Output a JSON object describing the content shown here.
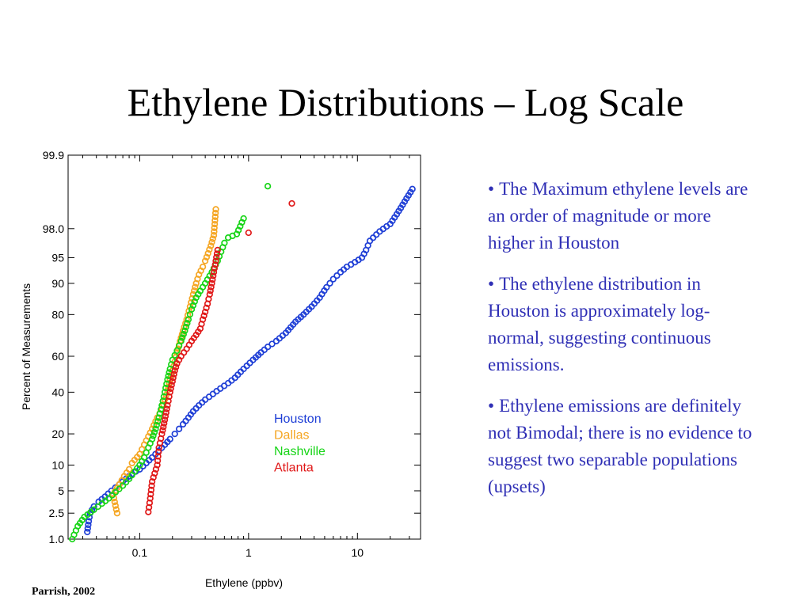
{
  "slide": {
    "title": "Ethylene Distributions – Log Scale",
    "bullets": [
      "The Maximum ethylene levels are an order of magnitude or more higher in Houston",
      "The ethylene distribution in Houston is approximately log-normal, suggesting continuous emissions.",
      "Ethylene emissions are definitely not Bimodal; there is no evidence to suggest two separable populations (upsets)"
    ],
    "bullet_glyph": "•",
    "citation": "Parrish, 2002"
  },
  "chart_data": {
    "type": "scatter",
    "xlabel": "Ethylene (ppbv)",
    "ylabel": "Percent of Measurements",
    "x_scale": "log",
    "y_scale": "probability",
    "xlim": [
      0.022,
      38
    ],
    "ylim": [
      1.0,
      99.9
    ],
    "x_ticks": [
      {
        "value": 0.1,
        "label": "0.1"
      },
      {
        "value": 1,
        "label": "1"
      },
      {
        "value": 10,
        "label": "10"
      }
    ],
    "y_ticks": [
      {
        "value": 1.0,
        "label": "1.0"
      },
      {
        "value": 2.5,
        "label": "2.5"
      },
      {
        "value": 5,
        "label": "5"
      },
      {
        "value": 10,
        "label": "10"
      },
      {
        "value": 20,
        "label": "20"
      },
      {
        "value": 40,
        "label": "40"
      },
      {
        "value": 60,
        "label": "60"
      },
      {
        "value": 80,
        "label": "80"
      },
      {
        "value": 90,
        "label": "90"
      },
      {
        "value": 95,
        "label": "95"
      },
      {
        "value": 98.0,
        "label": "98.0"
      },
      {
        "value": 99.9,
        "label": "99.9"
      }
    ],
    "marker": "open-circle",
    "legend_position": "inside-lower-right",
    "series": [
      {
        "name": "Houston",
        "color": "#1f3fd6",
        "points": [
          [
            0.033,
            1.3
          ],
          [
            0.034,
            1.9
          ],
          [
            0.035,
            2.5
          ],
          [
            0.038,
            3.1
          ],
          [
            0.042,
            3.6
          ],
          [
            0.048,
            4.2
          ],
          [
            0.055,
            5
          ],
          [
            0.065,
            6
          ],
          [
            0.075,
            7
          ],
          [
            0.085,
            8
          ],
          [
            0.1,
            9
          ],
          [
            0.115,
            10.5
          ],
          [
            0.13,
            12
          ],
          [
            0.15,
            14
          ],
          [
            0.17,
            16
          ],
          [
            0.19,
            18
          ],
          [
            0.21,
            20
          ],
          [
            0.23,
            22
          ],
          [
            0.25,
            24
          ],
          [
            0.28,
            27
          ],
          [
            0.31,
            30
          ],
          [
            0.35,
            33
          ],
          [
            0.4,
            36
          ],
          [
            0.47,
            39
          ],
          [
            0.55,
            42
          ],
          [
            0.65,
            45
          ],
          [
            0.75,
            48
          ],
          [
            0.9,
            53
          ],
          [
            1.1,
            58
          ],
          [
            1.3,
            62
          ],
          [
            1.5,
            65
          ],
          [
            1.8,
            68
          ],
          [
            2.2,
            72
          ],
          [
            2.7,
            77
          ],
          [
            3.2,
            80
          ],
          [
            3.8,
            83
          ],
          [
            4.5,
            86
          ],
          [
            5.2,
            89
          ],
          [
            6.0,
            91
          ],
          [
            7.0,
            92.5
          ],
          [
            8.0,
            93.5
          ],
          [
            9.5,
            94.3
          ],
          [
            11,
            95
          ],
          [
            12,
            96
          ],
          [
            13,
            97
          ],
          [
            16,
            97.8
          ],
          [
            20,
            98.3
          ],
          [
            23,
            98.8
          ],
          [
            32,
            99.55
          ]
        ]
      },
      {
        "name": "Dallas",
        "color": "#f5a623",
        "points": [
          [
            0.062,
            2.5
          ],
          [
            0.057,
            4.5
          ],
          [
            0.065,
            6
          ],
          [
            0.072,
            7.5
          ],
          [
            0.08,
            9
          ],
          [
            0.085,
            10.5
          ],
          [
            0.1,
            13
          ],
          [
            0.11,
            16
          ],
          [
            0.12,
            19
          ],
          [
            0.13,
            22
          ],
          [
            0.145,
            27
          ],
          [
            0.16,
            31
          ],
          [
            0.17,
            36
          ],
          [
            0.18,
            41
          ],
          [
            0.19,
            47
          ],
          [
            0.2,
            52
          ],
          [
            0.21,
            57
          ],
          [
            0.22,
            62
          ],
          [
            0.235,
            68
          ],
          [
            0.25,
            73
          ],
          [
            0.27,
            78
          ],
          [
            0.29,
            83
          ],
          [
            0.31,
            87
          ],
          [
            0.33,
            90
          ],
          [
            0.35,
            92
          ],
          [
            0.38,
            93.5
          ],
          [
            0.4,
            94.5
          ],
          [
            0.45,
            96.5
          ],
          [
            0.48,
            97.5
          ],
          [
            0.5,
            99
          ]
        ]
      },
      {
        "name": "Nashville",
        "color": "#17d417",
        "points": [
          [
            0.024,
            1
          ],
          [
            0.027,
            1.6
          ],
          [
            0.031,
            2.2
          ],
          [
            0.038,
            2.8
          ],
          [
            0.045,
            3.4
          ],
          [
            0.052,
            4
          ],
          [
            0.06,
            4.8
          ],
          [
            0.07,
            5.8
          ],
          [
            0.08,
            7
          ],
          [
            0.09,
            8.5
          ],
          [
            0.1,
            10
          ],
          [
            0.11,
            12
          ],
          [
            0.12,
            15
          ],
          [
            0.13,
            18
          ],
          [
            0.14,
            22
          ],
          [
            0.15,
            27
          ],
          [
            0.16,
            33
          ],
          [
            0.17,
            40
          ],
          [
            0.18,
            47
          ],
          [
            0.19,
            53
          ],
          [
            0.2,
            58
          ],
          [
            0.22,
            63
          ],
          [
            0.24,
            68
          ],
          [
            0.26,
            73
          ],
          [
            0.28,
            78
          ],
          [
            0.3,
            82
          ],
          [
            0.33,
            86
          ],
          [
            0.36,
            88
          ],
          [
            0.4,
            90
          ],
          [
            0.46,
            92.5
          ],
          [
            0.52,
            94.5
          ],
          [
            0.56,
            95.8
          ],
          [
            0.6,
            96.8
          ],
          [
            0.65,
            97.3
          ],
          [
            0.78,
            97.6
          ],
          [
            0.9,
            98.6
          ],
          [
            1.5,
            99.6
          ]
        ]
      },
      {
        "name": "Atlanta",
        "color": "#e01818",
        "points": [
          [
            0.12,
            2.6
          ],
          [
            0.125,
            4
          ],
          [
            0.13,
            6.5
          ],
          [
            0.145,
            10
          ],
          [
            0.15,
            15
          ],
          [
            0.16,
            20
          ],
          [
            0.17,
            26
          ],
          [
            0.18,
            33
          ],
          [
            0.19,
            40
          ],
          [
            0.2,
            46
          ],
          [
            0.21,
            52
          ],
          [
            0.22,
            56
          ],
          [
            0.24,
            60
          ],
          [
            0.27,
            64
          ],
          [
            0.3,
            68
          ],
          [
            0.33,
            71
          ],
          [
            0.36,
            74
          ],
          [
            0.38,
            78
          ],
          [
            0.4,
            81
          ],
          [
            0.42,
            84
          ],
          [
            0.44,
            87
          ],
          [
            0.46,
            90
          ],
          [
            0.48,
            92.5
          ],
          [
            0.5,
            94.5
          ],
          [
            0.52,
            96
          ],
          [
            1.0,
            97.7
          ],
          [
            2.5,
            99.2
          ]
        ]
      }
    ]
  }
}
